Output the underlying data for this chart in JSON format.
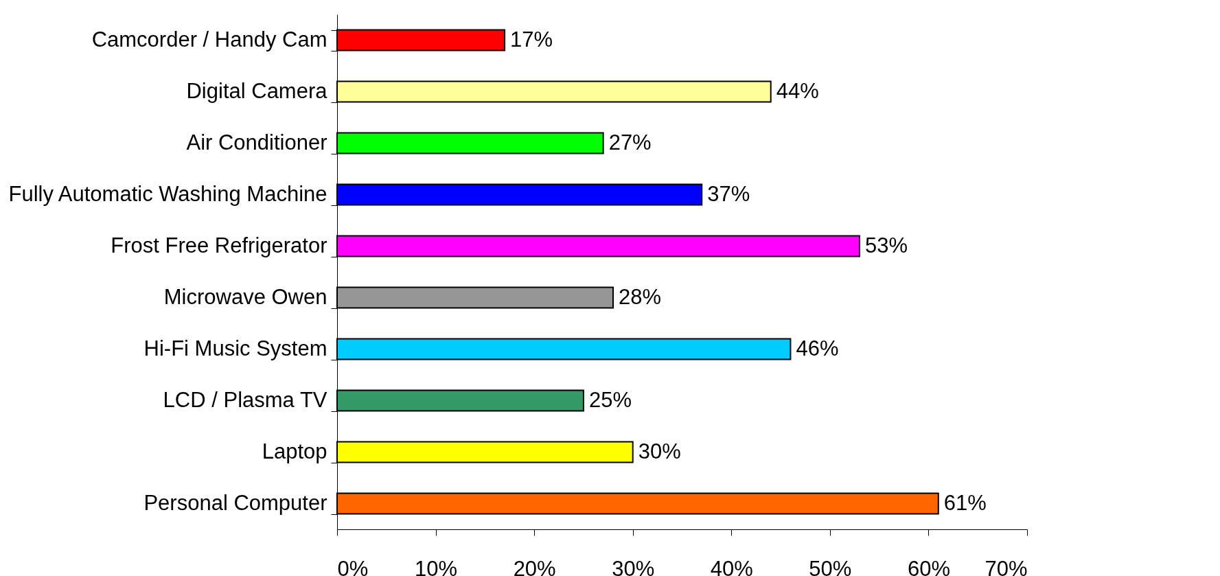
{
  "chart_data": {
    "type": "bar",
    "orientation": "horizontal",
    "categories": [
      "Camcorder / Handy Cam",
      "Digital Camera",
      "Air Conditioner",
      "Fully Automatic Washing Machine",
      "Frost Free Refrigerator",
      "Microwave Owen",
      "Hi-Fi Music System",
      "LCD / Plasma TV",
      "Laptop",
      "Personal Computer"
    ],
    "values": [
      17,
      44,
      27,
      37,
      53,
      28,
      46,
      25,
      30,
      61
    ],
    "colors": [
      "#ff0000",
      "#ffff99",
      "#00ff00",
      "#0000ff",
      "#ff00ff",
      "#969696",
      "#00ccff",
      "#339966",
      "#ffff00",
      "#ff6600"
    ],
    "value_labels": [
      "17%",
      "44%",
      "27%",
      "37%",
      "53%",
      "28%",
      "46%",
      "25%",
      "30%",
      "61%"
    ],
    "xlim": [
      0,
      70
    ],
    "xticks": [
      {
        "value": 0,
        "label": "0%"
      },
      {
        "value": 10,
        "label": "10%"
      },
      {
        "value": 20,
        "label": "20%"
      },
      {
        "value": 30,
        "label": "30%"
      },
      {
        "value": 40,
        "label": "40%"
      },
      {
        "value": 50,
        "label": "50%"
      },
      {
        "value": 60,
        "label": "60%"
      },
      {
        "value": 70,
        "label": "70%"
      }
    ],
    "grid": false,
    "legend": false
  }
}
